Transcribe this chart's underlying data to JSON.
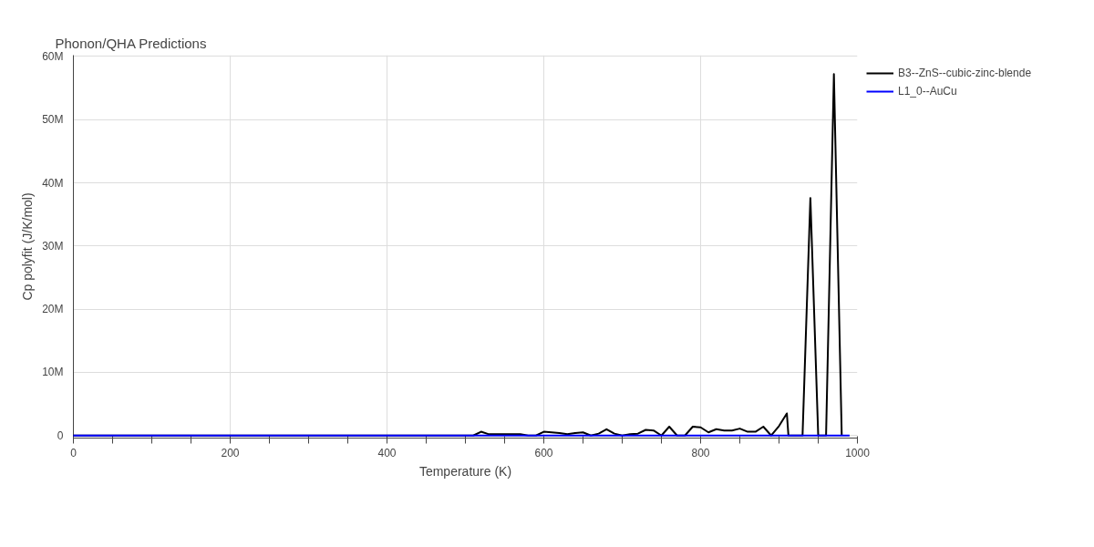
{
  "chart_data": {
    "type": "line",
    "title": "Phonon/QHA Predictions",
    "xlabel": "Temperature (K)",
    "ylabel": "Cp polyfit (J/K/mol)",
    "xlim": [
      0,
      1000
    ],
    "ylim": [
      -400000,
      60200000
    ],
    "xticks": [
      0,
      {
        "value": 50,
        "label": null
      },
      {
        "value": 100,
        "label": null
      },
      {
        "value": 150,
        "label": null
      },
      200,
      {
        "value": 250,
        "label": null
      },
      {
        "value": 300,
        "label": null
      },
      {
        "value": 350,
        "label": null
      },
      400,
      {
        "value": 450,
        "label": null
      },
      {
        "value": 500,
        "label": null
      },
      {
        "value": 550,
        "label": null
      },
      600,
      {
        "value": 650,
        "label": null
      },
      {
        "value": 700,
        "label": null
      },
      {
        "value": 750,
        "label": null
      },
      800,
      {
        "value": 850,
        "label": null
      },
      {
        "value": 900,
        "label": null
      },
      {
        "value": 950,
        "label": null
      },
      1000
    ],
    "yticks": [
      0,
      {
        "value": 10000000,
        "label": "10M"
      },
      {
        "value": 20000000,
        "label": "20M"
      },
      {
        "value": 30000000,
        "label": "30M"
      },
      {
        "value": 40000000,
        "label": "40M"
      },
      {
        "value": 50000000,
        "label": "50M"
      },
      {
        "value": 60000000,
        "label": "60M"
      }
    ],
    "grid": true,
    "legend": "top right",
    "marker": "none",
    "line_style": "solid",
    "series": [
      {
        "name": "B3--ZnS--cubic-zinc-blende",
        "color": "#000000",
        "x": [
          0,
          100,
          200,
          300,
          400,
          500,
          510,
          520,
          530,
          540,
          550,
          560,
          570,
          580,
          590,
          600,
          610,
          620,
          630,
          640,
          650,
          660,
          670,
          680,
          690,
          700,
          710,
          720,
          730,
          740,
          750,
          760,
          770,
          780,
          790,
          800,
          810,
          820,
          830,
          840,
          850,
          860,
          870,
          880,
          890,
          900,
          910,
          912,
          920,
          930,
          940,
          950,
          960,
          970,
          980
        ],
        "values": [
          0,
          0,
          0,
          0,
          0,
          0,
          0,
          600000,
          200000,
          200000,
          200000,
          200000,
          200000,
          0,
          0,
          600000,
          500000,
          400000,
          200000,
          400000,
          500000,
          0,
          300000,
          1000000,
          300000,
          0,
          200000,
          300000,
          900000,
          800000,
          0,
          1400000,
          0,
          0,
          1400000,
          1300000,
          500000,
          1000000,
          800000,
          800000,
          1100000,
          600000,
          600000,
          1400000,
          0,
          1500000,
          3500000,
          0,
          0,
          0,
          37600000,
          0,
          0,
          57200000,
          0
        ]
      },
      {
        "name": "L1_0--AuCu",
        "color": "#0000ff",
        "x": [
          0,
          250,
          500,
          750,
          990
        ],
        "values": [
          0,
          0,
          0,
          0,
          0
        ]
      }
    ]
  }
}
